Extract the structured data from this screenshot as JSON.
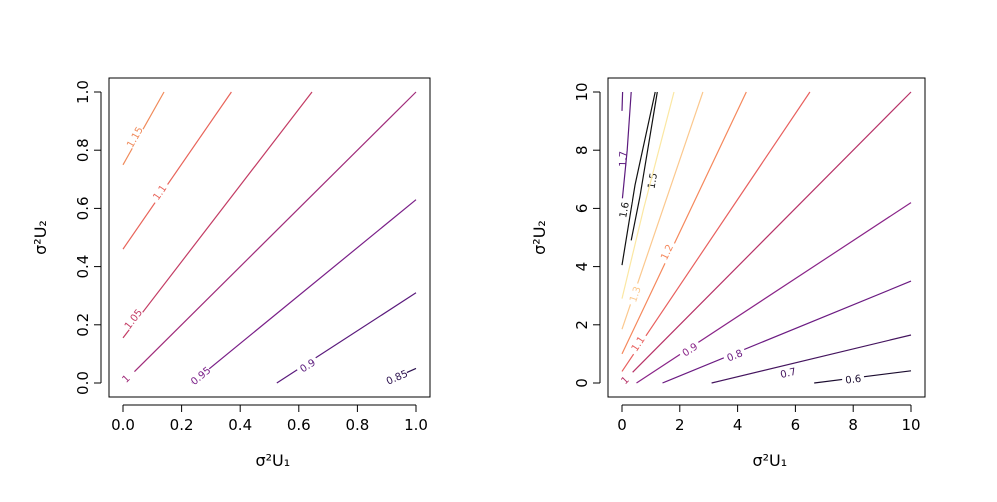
{
  "chart_data": [
    {
      "type": "contour",
      "xlabel": "σ²U₁",
      "ylabel": "σ²U₂",
      "xlim": [
        0,
        1
      ],
      "ylim": [
        0,
        1
      ],
      "xticks": [
        0.0,
        0.2,
        0.4,
        0.6,
        0.8,
        1.0
      ],
      "yticks": [
        0.0,
        0.2,
        0.4,
        0.6,
        0.8,
        1.0
      ],
      "tick_labels_x": [
        "0.0",
        "0.2",
        "0.4",
        "0.6",
        "0.8",
        "1.0"
      ],
      "tick_labels_y": [
        "0.0",
        "0.2",
        "0.4",
        "0.6",
        "0.8",
        "1.0"
      ],
      "contours": [
        {
          "label": "1.15",
          "color": "#f08a5a",
          "points": [
            [
              0.0,
              0.75
            ],
            [
              0.14,
              1.0
            ]
          ],
          "label_at": [
            0.04,
            0.845
          ]
        },
        {
          "label": "1.1",
          "color": "#e8645a",
          "points": [
            [
              0.0,
              0.46
            ],
            [
              0.37,
              1.0
            ]
          ],
          "label_at": [
            0.125,
            0.655
          ]
        },
        {
          "label": "1.05",
          "color": "#c33c64",
          "points": [
            [
              0.0,
              0.155
            ],
            [
              0.645,
              1.0
            ]
          ],
          "label_at": [
            0.035,
            0.22
          ]
        },
        {
          "label": "1",
          "color": "#a02c7a",
          "points": [
            [
              0.0,
              0.0
            ],
            [
              1.0,
              1.0
            ]
          ],
          "label_at": [
            0.01,
            0.015
          ]
        },
        {
          "label": "0.95",
          "color": "#7a1f88",
          "points": [
            [
              0.235,
              0.0
            ],
            [
              1.0,
              0.63
            ]
          ],
          "label_at": [
            0.265,
            0.025
          ]
        },
        {
          "label": "0.9",
          "color": "#5a1a7c",
          "points": [
            [
              0.525,
              0.0
            ],
            [
              1.0,
              0.31
            ]
          ],
          "label_at": [
            0.63,
            0.06
          ]
        },
        {
          "label": "0.85",
          "color": "#2c114e",
          "points": [
            [
              0.955,
              0.03
            ],
            [
              1.0,
              0.05
            ]
          ],
          "label_at": [
            0.935,
            0.02
          ]
        }
      ]
    },
    {
      "type": "contour",
      "xlabel": "σ²U₁",
      "ylabel": "σ²U₂",
      "xlim": [
        0,
        10
      ],
      "ylim": [
        0,
        10
      ],
      "xticks": [
        0,
        2,
        4,
        6,
        8,
        10
      ],
      "yticks": [
        0,
        2,
        4,
        6,
        8,
        10
      ],
      "tick_labels_x": [
        "0",
        "2",
        "4",
        "6",
        "8",
        "10"
      ],
      "tick_labels_y": [
        "0",
        "2",
        "4",
        "6",
        "8",
        "10"
      ],
      "contours": [
        {
          "label": "1.7",
          "color": "#5c1a7e",
          "points": [
            [
              0.0,
              9.35
            ],
            [
              0.02,
              10.0
            ]
          ],
          "label_at": [
            0.03,
            7.7
          ]
        },
        {
          "label": "",
          "color": "#5c1a7e",
          "points": [
            [
              0.0,
              6.2
            ],
            [
              0.18,
              8.0
            ],
            [
              0.32,
              10.0
            ]
          ],
          "label_at": null
        },
        {
          "label": "1.6",
          "color": "#111111",
          "points": [
            [
              0.0,
              4.05
            ],
            [
              0.45,
              6.8
            ],
            [
              1.15,
              10.0
            ]
          ],
          "label_at": [
            0.07,
            5.95
          ]
        },
        {
          "label": "1.5",
          "color": "#111111",
          "points": [
            [
              0.32,
              4.9
            ],
            [
              0.62,
              6.4
            ],
            [
              1.22,
              10.0
            ]
          ],
          "label_at": [
            1.05,
            6.95
          ]
        },
        {
          "label": "",
          "color": "#fbe7a2",
          "points": [
            [
              0.0,
              2.9
            ],
            [
              0.75,
              6.0
            ],
            [
              1.8,
              10.0
            ]
          ],
          "label_at": null
        },
        {
          "label": "1.3",
          "color": "#fbc88e",
          "points": [
            [
              0.0,
              1.85
            ],
            [
              2.8,
              10.0
            ]
          ],
          "label_at": [
            0.45,
            3.05
          ]
        },
        {
          "label": "1.2",
          "color": "#f5885c",
          "points": [
            [
              0.0,
              1.0
            ],
            [
              4.3,
              10.0
            ]
          ],
          "label_at": [
            1.55,
            4.5
          ]
        },
        {
          "label": "1.1",
          "color": "#e8605e",
          "points": [
            [
              0.0,
              0.4
            ],
            [
              6.5,
              10.0
            ]
          ],
          "label_at": [
            0.55,
            1.35
          ]
        },
        {
          "label": "1",
          "color": "#b73267",
          "points": [
            [
              0.0,
              0.0
            ],
            [
              10.0,
              10.0
            ]
          ],
          "label_at": [
            0.1,
            0.1
          ]
        },
        {
          "label": "0.9",
          "color": "#8a2488",
          "points": [
            [
              0.5,
              0.0
            ],
            [
              10.0,
              6.2
            ]
          ],
          "label_at": [
            2.35,
            1.15
          ]
        },
        {
          "label": "0.8",
          "color": "#6b1b82",
          "points": [
            [
              1.4,
              0.0
            ],
            [
              10.0,
              3.5
            ]
          ],
          "label_at": [
            3.9,
            0.95
          ]
        },
        {
          "label": "0.7",
          "color": "#44145e",
          "points": [
            [
              3.1,
              0.0
            ],
            [
              10.0,
              1.65
            ]
          ],
          "label_at": [
            5.75,
            0.35
          ]
        },
        {
          "label": "0.6",
          "color": "#1a0b2e",
          "points": [
            [
              6.65,
              0.0
            ],
            [
              10.0,
              0.42
            ]
          ],
          "label_at": [
            8.0,
            0.13
          ]
        }
      ]
    }
  ]
}
